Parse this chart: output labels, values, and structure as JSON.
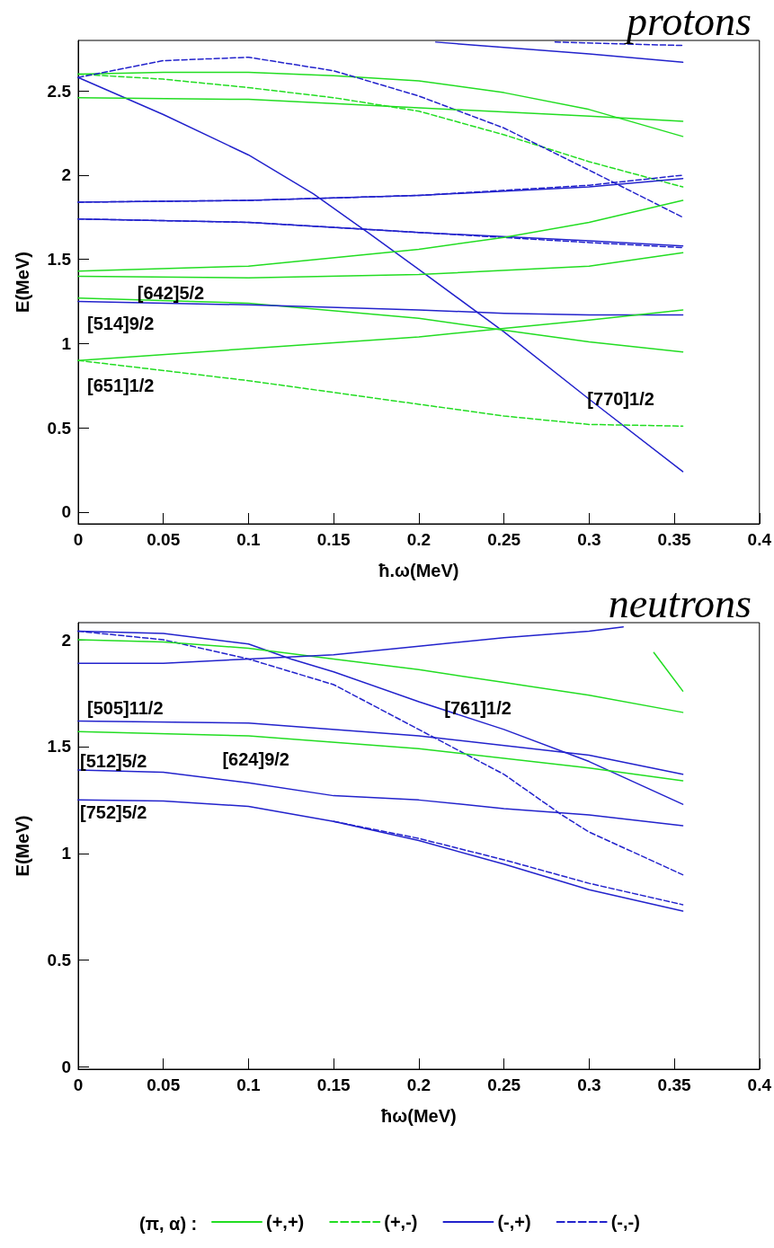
{
  "chart_data": [
    {
      "type": "line",
      "title": "protons",
      "xlabel": "ħ.ω(MeV)",
      "ylabel": "E(MeV)",
      "legend_title": "(π, α) :",
      "legend": "bottom",
      "grid": false,
      "marker": "none",
      "xlim": [
        0,
        0.4
      ],
      "xticks": [
        0,
        0.05,
        0.1,
        0.15,
        0.2,
        0.25,
        0.3,
        0.35,
        0.4
      ],
      "ylim": [
        -0.07,
        2.8
      ],
      "yticks": [
        0,
        0.5,
        1,
        1.5,
        2,
        2.5
      ],
      "annotations": [
        {
          "text": "[642]5/2",
          "x": 0.05,
          "y": 1.26
        },
        {
          "text": "[514]9/2",
          "x": 0,
          "y": 1.25
        },
        {
          "text": "[651]1/2",
          "x": 0,
          "y": 0.9
        },
        {
          "text": "[770]1/2",
          "x": 0.3,
          "y": 0.67
        }
      ],
      "series": [
        {
          "name": "(+,+)",
          "color": "#22dd22",
          "line_style": "solid",
          "x": [
            0,
            0.05,
            0.1,
            0.15,
            0.2,
            0.25,
            0.3,
            0.355
          ],
          "values": [
            2.6,
            2.61,
            2.61,
            2.59,
            2.56,
            2.49,
            2.39,
            2.23
          ]
        },
        {
          "name": "(+,-)",
          "color": "#22dd22",
          "line_style": "dashed",
          "x": [
            0,
            0.05,
            0.1,
            0.15,
            0.2,
            0.25,
            0.3,
            0.355
          ],
          "values": [
            2.6,
            2.57,
            2.52,
            2.46,
            2.38,
            2.24,
            2.08,
            1.93
          ]
        },
        {
          "name": "(-,+)",
          "color": "#2222cc",
          "line_style": "solid",
          "x": [
            0,
            0.05,
            0.1,
            0.138,
            0.17,
            0.2,
            0.25,
            0.3,
            0.355
          ],
          "values": [
            2.58,
            2.36,
            2.12,
            1.89,
            1.66,
            1.44,
            1.07,
            0.67,
            0.24
          ]
        },
        {
          "name": "(-,-)",
          "color": "#2222cc",
          "line_style": "dashed",
          "x": [
            0,
            0.05,
            0.1,
            0.15,
            0.2,
            0.25,
            0.3,
            0.355
          ],
          "values": [
            2.58,
            2.68,
            2.7,
            2.62,
            2.47,
            2.28,
            2.03,
            1.75
          ]
        },
        {
          "color": "#22dd22",
          "line_style": "solid",
          "x": [
            0,
            0.1,
            0.2,
            0.3,
            0.355
          ],
          "values": [
            2.46,
            2.45,
            2.4,
            2.35,
            2.32
          ]
        },
        {
          "color": "#2222cc",
          "line_style": "solid",
          "x": [
            0.21,
            0.3,
            0.355
          ],
          "values": [
            2.79,
            2.72,
            2.67
          ]
        },
        {
          "color": "#2222cc",
          "line_style": "dashed",
          "x": [
            0.28,
            0.355
          ],
          "values": [
            2.79,
            2.77
          ]
        },
        {
          "color": "#2222cc",
          "line_style": "dashed",
          "x": [
            0,
            0.1,
            0.2,
            0.3,
            0.355
          ],
          "values": [
            1.84,
            1.85,
            1.88,
            1.94,
            2.0
          ]
        },
        {
          "color": "#2222cc",
          "line_style": "solid",
          "x": [
            0,
            0.1,
            0.2,
            0.3,
            0.355
          ],
          "values": [
            1.84,
            1.85,
            1.88,
            1.93,
            1.98
          ]
        },
        {
          "color": "#2222cc",
          "line_style": "dashed",
          "x": [
            0,
            0.1,
            0.2,
            0.3,
            0.355
          ],
          "values": [
            1.74,
            1.72,
            1.66,
            1.6,
            1.57
          ]
        },
        {
          "color": "#2222cc",
          "line_style": "solid",
          "x": [
            0,
            0.1,
            0.2,
            0.3,
            0.355
          ],
          "values": [
            1.74,
            1.72,
            1.66,
            1.61,
            1.58
          ]
        },
        {
          "color": "#22dd22",
          "line_style": "solid",
          "x": [
            0,
            0.1,
            0.2,
            0.25,
            0.3,
            0.355
          ],
          "values": [
            1.43,
            1.46,
            1.56,
            1.63,
            1.72,
            1.85
          ]
        },
        {
          "color": "#22dd22",
          "line_style": "solid",
          "x": [
            0,
            0.1,
            0.2,
            0.3,
            0.355
          ],
          "values": [
            1.4,
            1.39,
            1.41,
            1.46,
            1.54
          ]
        },
        {
          "color": "#22dd22",
          "line_style": "solid",
          "x": [
            0,
            0.1,
            0.2,
            0.25,
            0.3,
            0.355
          ],
          "values": [
            1.27,
            1.24,
            1.15,
            1.08,
            1.01,
            0.95
          ]
        },
        {
          "color": "#2222cc",
          "line_style": "solid",
          "x": [
            0,
            0.1,
            0.2,
            0.25,
            0.3,
            0.355
          ],
          "values": [
            1.25,
            1.23,
            1.2,
            1.18,
            1.17,
            1.17
          ]
        },
        {
          "color": "#22dd22",
          "line_style": "solid",
          "x": [
            0,
            0.1,
            0.2,
            0.25,
            0.3,
            0.355
          ],
          "values": [
            0.9,
            0.97,
            1.04,
            1.09,
            1.14,
            1.2
          ]
        },
        {
          "color": "#22dd22",
          "line_style": "dashed",
          "x": [
            0,
            0.1,
            0.2,
            0.25,
            0.3,
            0.355
          ],
          "values": [
            0.9,
            0.78,
            0.64,
            0.57,
            0.52,
            0.51
          ]
        }
      ]
    },
    {
      "type": "line",
      "title": "neutrons",
      "xlabel": "ħω(MeV)",
      "ylabel": "E(MeV)",
      "grid": false,
      "marker": "none",
      "xlim": [
        0,
        0.4
      ],
      "xticks": [
        0,
        0.05,
        0.1,
        0.15,
        0.2,
        0.25,
        0.3,
        0.35,
        0.4
      ],
      "ylim": [
        -0.01,
        2.08
      ],
      "yticks": [
        0,
        0.5,
        1,
        1.5,
        2
      ],
      "annotations": [
        {
          "text": "[505]11/2",
          "x": 0,
          "y": 1.62
        },
        {
          "text": "[761]1/2",
          "x": 0.215,
          "y": 1.65
        },
        {
          "text": "[512]5/2",
          "x": 0,
          "y": 1.39
        },
        {
          "text": "[624]9/2",
          "x": 0.1,
          "y": 1.55
        },
        {
          "text": "[752]5/2",
          "x": 0,
          "y": 1.25
        }
      ],
      "series": [
        {
          "color": "#2222cc",
          "line_style": "solid",
          "x": [
            0,
            0.05,
            0.1,
            0.125,
            0.15,
            0.2,
            0.25,
            0.3,
            0.355
          ],
          "values": [
            2.04,
            2.03,
            1.98,
            1.91,
            1.85,
            1.71,
            1.58,
            1.43,
            1.23
          ]
        },
        {
          "color": "#2222cc",
          "line_style": "dashed",
          "x": [
            0,
            0.05,
            0.1,
            0.15,
            0.2,
            0.25,
            0.284,
            0.3,
            0.355
          ],
          "values": [
            2.04,
            2.0,
            1.91,
            1.79,
            1.58,
            1.37,
            1.18,
            1.1,
            0.9
          ]
        },
        {
          "color": "#22dd22",
          "line_style": "solid",
          "x": [
            0,
            0.05,
            0.1,
            0.15,
            0.2,
            0.25,
            0.3,
            0.355
          ],
          "values": [
            2.0,
            1.99,
            1.96,
            1.91,
            1.86,
            1.8,
            1.74,
            1.66
          ]
        },
        {
          "color": "#2222cc",
          "line_style": "solid",
          "x": [
            0,
            0.05,
            0.1,
            0.15,
            0.2,
            0.25,
            0.3,
            0.32
          ],
          "values": [
            1.89,
            1.89,
            1.91,
            1.93,
            1.97,
            2.01,
            2.04,
            2.06
          ]
        },
        {
          "color": "#22dd22",
          "line_style": "solid",
          "x": [
            0.338,
            0.355
          ],
          "values": [
            1.94,
            1.76
          ]
        },
        {
          "color": "#2222cc",
          "line_style": "solid",
          "x": [
            0,
            0.1,
            0.2,
            0.3,
            0.355
          ],
          "values": [
            1.62,
            1.61,
            1.55,
            1.46,
            1.37
          ]
        },
        {
          "color": "#22dd22",
          "line_style": "solid",
          "x": [
            0,
            0.1,
            0.2,
            0.3,
            0.355
          ],
          "values": [
            1.57,
            1.55,
            1.49,
            1.4,
            1.34
          ]
        },
        {
          "color": "#2222cc",
          "line_style": "solid",
          "x": [
            0,
            0.05,
            0.1,
            0.15,
            0.2,
            0.25,
            0.3,
            0.355
          ],
          "values": [
            1.39,
            1.38,
            1.33,
            1.27,
            1.25,
            1.21,
            1.18,
            1.13
          ]
        },
        {
          "color": "#2222cc",
          "line_style": "solid",
          "x": [
            0,
            0.05,
            0.1,
            0.15,
            0.2,
            0.25,
            0.3,
            0.355
          ],
          "values": [
            1.25,
            1.245,
            1.22,
            1.15,
            1.06,
            0.95,
            0.83,
            0.73
          ]
        },
        {
          "color": "#2222cc",
          "line_style": "dashed",
          "x": [
            0.15,
            0.2,
            0.25,
            0.3,
            0.355
          ],
          "values": [
            1.15,
            1.07,
            0.97,
            0.86,
            0.76
          ]
        }
      ]
    }
  ]
}
